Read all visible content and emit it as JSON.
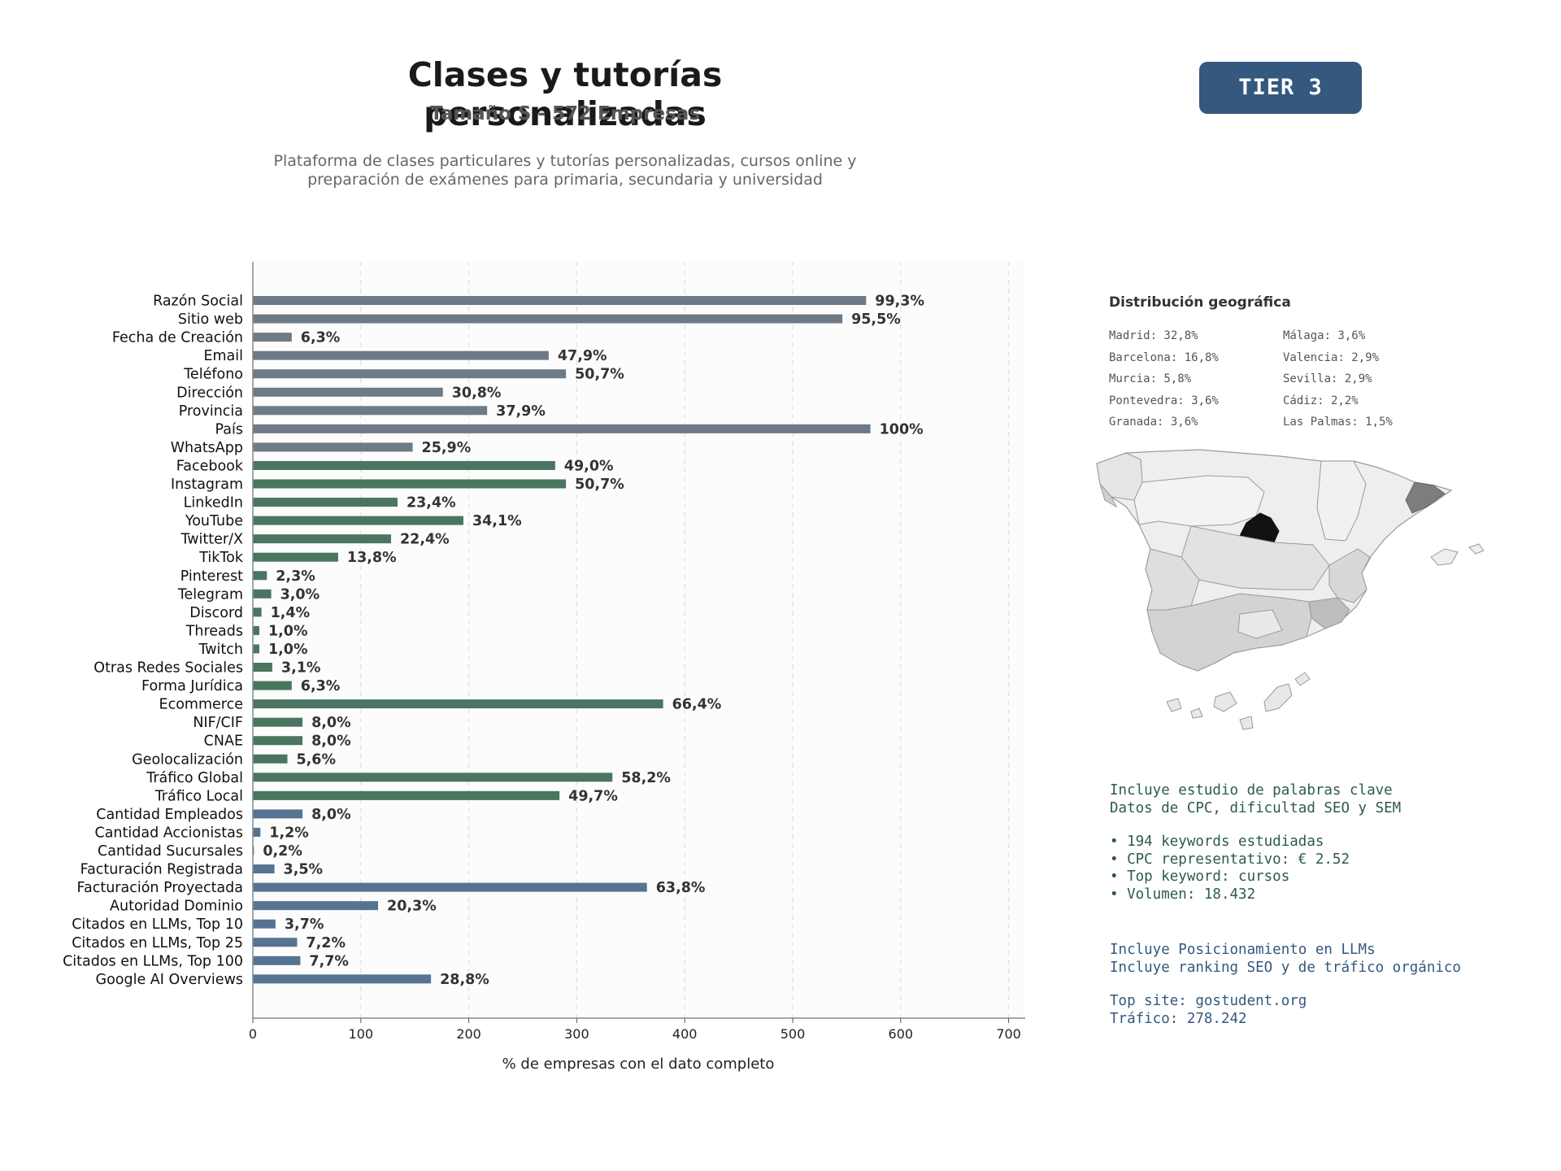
{
  "header": {
    "title": "Clases y tutorías personalizadas",
    "subtitle": "Tamaño S - 572 Empresas",
    "description": "Plataforma de clases particulares y tutorías personalizadas, cursos online y preparación de exámenes para primaria, secundaria y universidad",
    "tier_label": "TIER 3"
  },
  "chart_data": {
    "type": "bar",
    "orientation": "horizontal",
    "xlabel": "% de empresas con el dato completo",
    "ylabel": "",
    "xlim": [
      0,
      715
    ],
    "xticks": [
      0,
      100,
      200,
      300,
      400,
      500,
      600,
      700
    ],
    "grid": "vertical dashed",
    "colors": {
      "basic": "#6e7a85",
      "digital": "#4a7561",
      "business": "#567491"
    },
    "categories": [
      "Razón Social",
      "Sitio web",
      "Fecha de Creación",
      "Email",
      "Teléfono",
      "Dirección",
      "Provincia",
      "País",
      "WhatsApp",
      "Facebook",
      "Instagram",
      "LinkedIn",
      "YouTube",
      "Twitter/X",
      "TikTok",
      "Pinterest",
      "Telegram",
      "Discord",
      "Threads",
      "Twitch",
      "Otras Redes Sociales",
      "Forma Jurídica",
      "Ecommerce",
      "NIF/CIF",
      "CNAE",
      "Geolocalización",
      "Tráfico Global",
      "Tráfico Local",
      "Cantidad Empleados",
      "Cantidad Accionistas",
      "Cantidad Sucursales",
      "Facturación Registrada",
      "Facturación Proyectada",
      "Autoridad Dominio",
      "Citados en LLMs, Top 10",
      "Citados en LLMs, Top 25",
      "Citados en LLMs, Top 100",
      "Google AI Overviews"
    ],
    "values": [
      568,
      546,
      36,
      274,
      290,
      176,
      217,
      572,
      148,
      280,
      290,
      134,
      195,
      128,
      79,
      13,
      17,
      8,
      6,
      6,
      18,
      36,
      380,
      46,
      46,
      32,
      333,
      284,
      46,
      7,
      1,
      20,
      365,
      116,
      21,
      41,
      44,
      165
    ],
    "labels": [
      "99,3%",
      "95,5%",
      "6,3%",
      "47,9%",
      "50,7%",
      "30,8%",
      "37,9%",
      "100%",
      "25,9%",
      "49,0%",
      "50,7%",
      "23,4%",
      "34,1%",
      "22,4%",
      "13,8%",
      "2,3%",
      "3,0%",
      "1,4%",
      "1,0%",
      "1,0%",
      "3,1%",
      "6,3%",
      "66,4%",
      "8,0%",
      "8,0%",
      "5,6%",
      "58,2%",
      "49,7%",
      "8,0%",
      "1,2%",
      "0,2%",
      "3,5%",
      "63,8%",
      "20,3%",
      "3,7%",
      "7,2%",
      "7,7%",
      "28,8%"
    ],
    "groups": [
      "basic",
      "basic",
      "basic",
      "basic",
      "basic",
      "basic",
      "basic",
      "basic",
      "basic",
      "digital",
      "digital",
      "digital",
      "digital",
      "digital",
      "digital",
      "digital",
      "digital",
      "digital",
      "digital",
      "digital",
      "digital",
      "digital",
      "digital",
      "digital",
      "digital",
      "digital",
      "digital",
      "digital",
      "business",
      "business",
      "business",
      "business",
      "business",
      "business",
      "business",
      "business",
      "business",
      "business"
    ]
  },
  "geo": {
    "title": "Distribución geográfica",
    "rows": [
      [
        "Madrid: 32,8%",
        "Málaga: 3,6%"
      ],
      [
        "Barcelona: 16,8%",
        "Valencia: 2,9%"
      ],
      [
        "Murcia: 5,8%",
        "Sevilla: 2,9%"
      ],
      [
        "Pontevedra: 3,6%",
        "Cádiz: 2,2%"
      ],
      [
        "Granada: 3,6%",
        "Las Palmas: 1,5%"
      ]
    ]
  },
  "keywords": {
    "line1": "Incluye estudio de palabras clave",
    "line2": "Datos de CPC, dificultad SEO y SEM",
    "bullet1": "• 194 keywords estudiadas",
    "bullet2": "• CPC representativo: € 2.52",
    "bullet3": "• Top keyword: cursos",
    "bullet4": "• Volumen: 18.432"
  },
  "llm": {
    "line1": "Incluye Posicionamiento en LLMs",
    "line2": "Incluye ranking SEO y de tráfico orgánico",
    "line3": "Top site: gostudent.org",
    "line4": "Tráfico: 278.242"
  }
}
